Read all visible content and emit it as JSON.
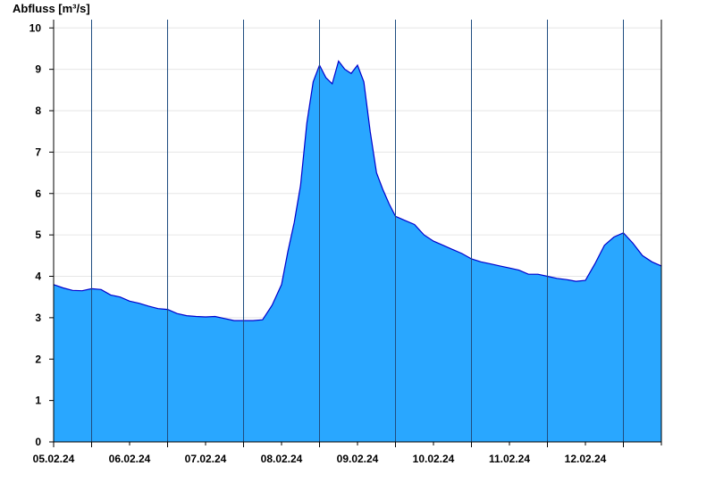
{
  "chart_data": {
    "type": "area",
    "title": "",
    "ylabel": "Abfluss [m³/s]",
    "xlabel": "",
    "ylim": [
      0,
      10.2
    ],
    "yticks": [
      0,
      1,
      2,
      3,
      4,
      5,
      6,
      7,
      8,
      9,
      10
    ],
    "x_range_days": [
      "04.02.24 12:00",
      "12.02.24 12:00"
    ],
    "xtick_labels": [
      "05.02.24",
      "06.02.24",
      "07.02.24",
      "08.02.24",
      "09.02.24",
      "10.02.24",
      "11.02.24",
      "12.02.24"
    ],
    "day_boundaries": [
      "05.02.24 00:00",
      "06.02.24 00:00",
      "07.02.24 00:00",
      "08.02.24 00:00",
      "09.02.24 00:00",
      "10.02.24 00:00",
      "11.02.24 00:00",
      "12.02.24 00:00"
    ],
    "fill_color": "#29A7FF",
    "line_color": "#0000CC",
    "grid": true,
    "series": [
      {
        "x": [
          "04.02.24 12:00",
          "04.02.24 15:00",
          "04.02.24 18:00",
          "04.02.24 21:00",
          "05.02.24 00:00",
          "05.02.24 03:00",
          "05.02.24 06:00",
          "05.02.24 09:00",
          "05.02.24 12:00",
          "05.02.24 15:00",
          "05.02.24 18:00",
          "05.02.24 21:00",
          "06.02.24 00:00",
          "06.02.24 03:00",
          "06.02.24 06:00",
          "06.02.24 09:00",
          "06.02.24 12:00",
          "06.02.24 15:00",
          "06.02.24 18:00",
          "06.02.24 21:00",
          "07.02.24 00:00",
          "07.02.24 03:00",
          "07.02.24 06:00",
          "07.02.24 09:00",
          "07.02.24 12:00",
          "07.02.24 14:00",
          "07.02.24 16:00",
          "07.02.24 18:00",
          "07.02.24 20:00",
          "07.02.24 22:00",
          "08.02.24 00:00",
          "08.02.24 02:00",
          "08.02.24 04:00",
          "08.02.24 06:00",
          "08.02.24 08:00",
          "08.02.24 10:00",
          "08.02.24 12:00",
          "08.02.24 14:00",
          "08.02.24 16:00",
          "08.02.24 18:00",
          "08.02.24 20:00",
          "08.02.24 22:00",
          "09.02.24 00:00",
          "09.02.24 03:00",
          "09.02.24 06:00",
          "09.02.24 09:00",
          "09.02.24 12:00",
          "09.02.24 15:00",
          "09.02.24 18:00",
          "09.02.24 21:00",
          "10.02.24 00:00",
          "10.02.24 03:00",
          "10.02.24 06:00",
          "10.02.24 09:00",
          "10.02.24 12:00",
          "10.02.24 15:00",
          "10.02.24 18:00",
          "10.02.24 21:00",
          "11.02.24 00:00",
          "11.02.24 03:00",
          "11.02.24 06:00",
          "11.02.24 09:00",
          "11.02.24 12:00",
          "11.02.24 15:00",
          "11.02.24 18:00",
          "11.02.24 21:00",
          "12.02.24 00:00",
          "12.02.24 03:00",
          "12.02.24 06:00",
          "12.02.24 09:00",
          "12.02.24 12:00"
        ],
        "values": [
          3.8,
          3.72,
          3.66,
          3.65,
          3.7,
          3.68,
          3.55,
          3.5,
          3.4,
          3.35,
          3.28,
          3.22,
          3.2,
          3.1,
          3.05,
          3.03,
          3.02,
          3.03,
          2.98,
          2.93,
          2.93,
          2.93,
          2.95,
          3.3,
          3.8,
          4.6,
          5.3,
          6.2,
          7.7,
          8.7,
          9.1,
          8.8,
          8.65,
          9.2,
          9.0,
          8.9,
          9.1,
          8.7,
          7.5,
          6.5,
          6.1,
          5.75,
          5.45,
          5.35,
          5.25,
          5.0,
          4.85,
          4.75,
          4.65,
          4.55,
          4.42,
          4.35,
          4.3,
          4.25,
          4.2,
          4.15,
          4.05,
          4.05,
          4.0,
          3.95,
          3.92,
          3.88,
          3.9,
          4.3,
          4.75,
          4.95,
          5.05,
          4.8,
          4.5,
          4.35,
          4.25
        ]
      }
    ]
  }
}
